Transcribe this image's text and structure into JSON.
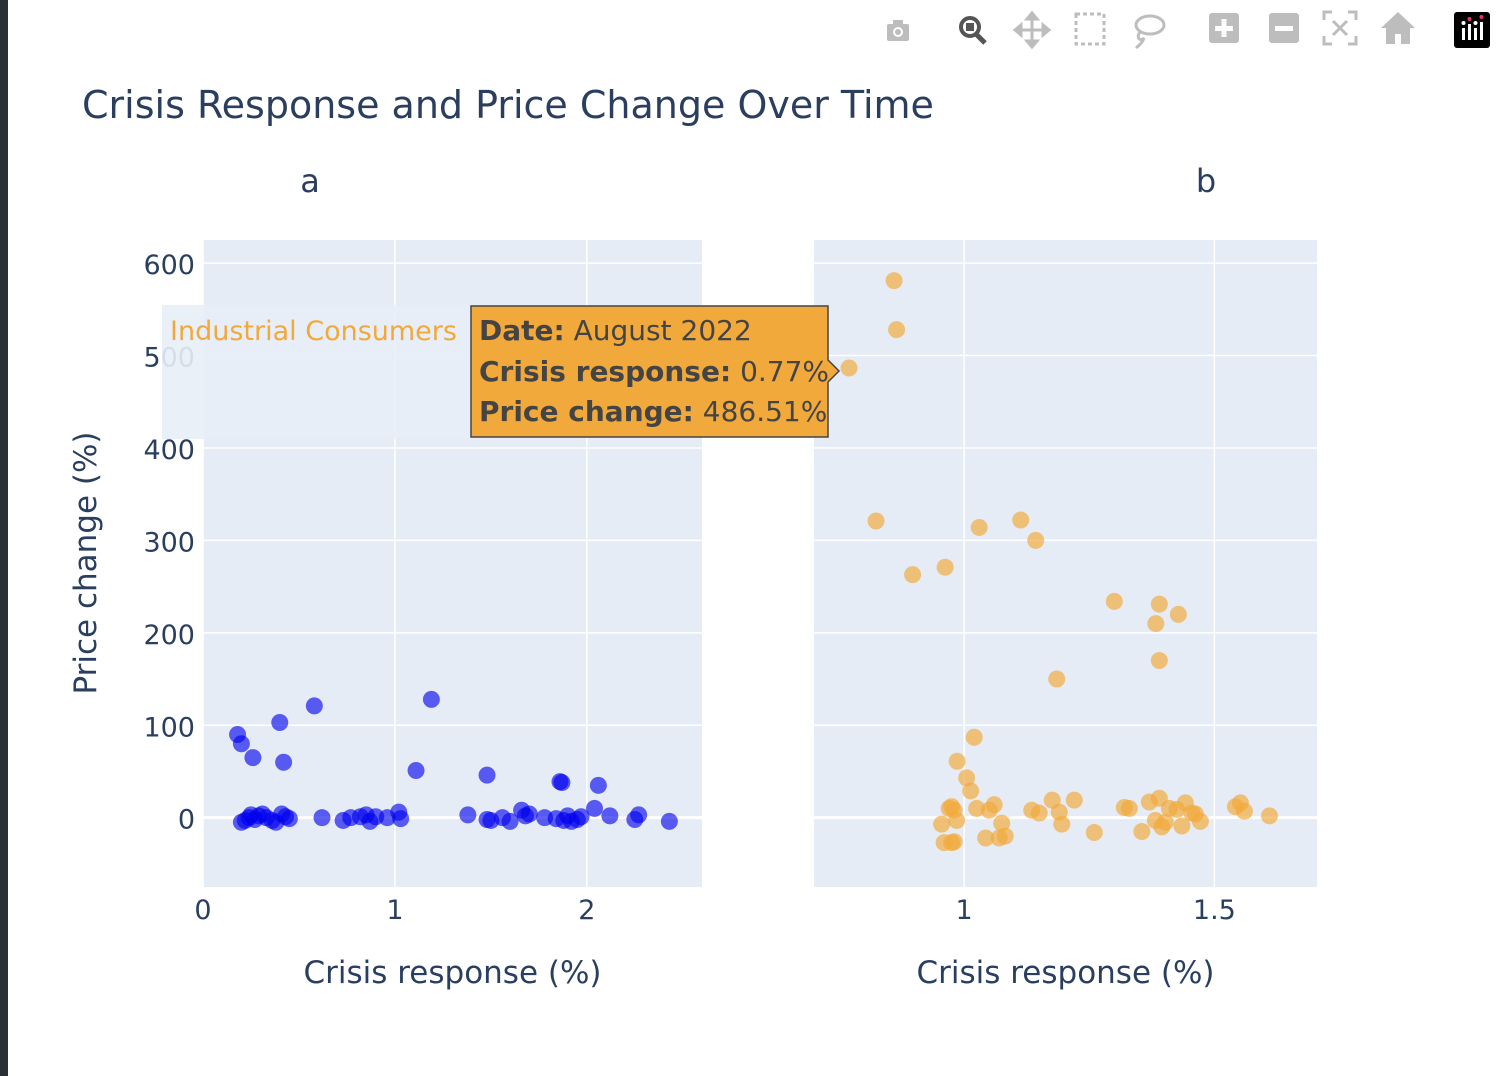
{
  "title": "Crisis Response and Price Change Over Time",
  "modebar": {
    "buttons": [
      {
        "name": "camera-icon",
        "icon": "camera"
      },
      {
        "name": "zoom-icon",
        "icon": "zoom"
      },
      {
        "name": "pan-icon",
        "icon": "pan"
      },
      {
        "name": "box-select-icon",
        "icon": "box-select"
      },
      {
        "name": "lasso-select-icon",
        "icon": "lasso"
      },
      {
        "name": "zoom-in-icon",
        "icon": "plus-square"
      },
      {
        "name": "zoom-out-icon",
        "icon": "minus-square"
      },
      {
        "name": "autoscale-icon",
        "icon": "autoscale"
      },
      {
        "name": "reset-axes-icon",
        "icon": "home"
      },
      {
        "name": "plotly-logo-icon",
        "icon": "plotly-logo"
      }
    ]
  },
  "tooltip": {
    "series_label": "Industrial Consumers",
    "date_key": "Date:",
    "date_value": " August 2022",
    "cr_key": "Crisis response:",
    "cr_value": " 0.77%",
    "pc_key": "Price change:",
    "pc_value": " 486.51%",
    "bg_color": "#f2a93b"
  },
  "chart_data": [
    {
      "type": "scatter",
      "subplot_title": "a",
      "xlabel": "Crisis response (%)",
      "ylabel": "Price change (%)",
      "xlim": [
        0,
        2.6
      ],
      "ylim": [
        -75,
        625
      ],
      "xticks": [
        0,
        1,
        2
      ],
      "xtick_labels": [
        "0",
        "1",
        "2"
      ],
      "yticks": [
        0,
        100,
        200,
        300,
        400,
        500,
        600
      ],
      "ytick_labels": [
        "0",
        "100",
        "200",
        "300",
        "400",
        "500",
        "600"
      ],
      "grid": true,
      "color": "#0000ee",
      "series": [
        {
          "points": [
            [
              0.18,
              90
            ],
            [
              0.2,
              80
            ],
            [
              0.26,
              65
            ],
            [
              0.4,
              103
            ],
            [
              0.42,
              60
            ],
            [
              0.58,
              121
            ],
            [
              1.19,
              128
            ],
            [
              1.11,
              51
            ],
            [
              1.48,
              46
            ],
            [
              1.86,
              39
            ],
            [
              1.87,
              38
            ],
            [
              2.06,
              35
            ],
            [
              0.2,
              -5
            ],
            [
              0.22,
              -3
            ],
            [
              0.24,
              0
            ],
            [
              0.25,
              3
            ],
            [
              0.27,
              -2
            ],
            [
              0.29,
              2
            ],
            [
              0.31,
              4
            ],
            [
              0.33,
              0
            ],
            [
              0.36,
              -3
            ],
            [
              0.38,
              -5
            ],
            [
              0.41,
              4
            ],
            [
              0.43,
              1
            ],
            [
              0.45,
              -1
            ],
            [
              0.62,
              0
            ],
            [
              0.73,
              -3
            ],
            [
              0.77,
              0
            ],
            [
              0.82,
              1
            ],
            [
              0.85,
              3
            ],
            [
              0.87,
              -4
            ],
            [
              0.9,
              1
            ],
            [
              0.96,
              0
            ],
            [
              1.02,
              6
            ],
            [
              1.03,
              -1
            ],
            [
              1.38,
              3
            ],
            [
              1.48,
              -2
            ],
            [
              1.5,
              -3
            ],
            [
              1.56,
              0
            ],
            [
              1.6,
              -4
            ],
            [
              1.66,
              8
            ],
            [
              1.68,
              2
            ],
            [
              1.7,
              4
            ],
            [
              1.78,
              0
            ],
            [
              1.84,
              -1
            ],
            [
              1.88,
              -3
            ],
            [
              1.9,
              2
            ],
            [
              1.92,
              -4
            ],
            [
              1.95,
              -2
            ],
            [
              1.97,
              1
            ],
            [
              2.04,
              10
            ],
            [
              2.12,
              2
            ],
            [
              2.25,
              -2
            ],
            [
              2.27,
              3
            ],
            [
              2.43,
              -4
            ]
          ]
        }
      ]
    },
    {
      "type": "scatter",
      "subplot_title": "b",
      "xlabel": "Crisis response (%)",
      "xlim": [
        0.7,
        1.705
      ],
      "ylim": [
        -75,
        625
      ],
      "xticks": [
        1,
        1.5
      ],
      "xtick_labels": [
        "1",
        "1.5"
      ],
      "yticks": [
        0,
        100,
        200,
        300,
        400,
        500,
        600
      ],
      "grid": true,
      "color": "#f2a93b",
      "series": [
        {
          "name": "Industrial Consumers",
          "points": [
            [
              0.86,
              581
            ],
            [
              0.865,
              528
            ],
            [
              0.77,
              486.51
            ],
            [
              0.824,
              321
            ],
            [
              0.897,
              263
            ],
            [
              0.962,
              271
            ],
            [
              1.03,
              314
            ],
            [
              1.113,
              322
            ],
            [
              1.143,
              300
            ],
            [
              1.3,
              234
            ],
            [
              1.39,
              231
            ],
            [
              1.428,
              220
            ],
            [
              1.383,
              210
            ],
            [
              1.39,
              170
            ],
            [
              1.185,
              150
            ],
            [
              1.02,
              87
            ],
            [
              0.986,
              61
            ],
            [
              1.005,
              43
            ],
            [
              1.013,
              29
            ],
            [
              0.955,
              -7
            ],
            [
              0.97,
              10
            ],
            [
              0.975,
              12
            ],
            [
              0.98,
              8
            ],
            [
              0.985,
              -3
            ],
            [
              0.96,
              -27
            ],
            [
              0.975,
              -27
            ],
            [
              0.98,
              -26
            ],
            [
              1.025,
              10
            ],
            [
              1.043,
              -22
            ],
            [
              1.05,
              8
            ],
            [
              1.06,
              14
            ],
            [
              1.07,
              -22
            ],
            [
              1.075,
              -6
            ],
            [
              1.082,
              -20
            ],
            [
              1.135,
              8
            ],
            [
              1.15,
              5
            ],
            [
              1.176,
              19
            ],
            [
              1.19,
              6
            ],
            [
              1.195,
              -7
            ],
            [
              1.22,
              19
            ],
            [
              1.26,
              -16
            ],
            [
              1.32,
              11
            ],
            [
              1.33,
              10
            ],
            [
              1.355,
              -15
            ],
            [
              1.37,
              17
            ],
            [
              1.382,
              -3
            ],
            [
              1.39,
              21
            ],
            [
              1.395,
              -10
            ],
            [
              1.402,
              -5
            ],
            [
              1.41,
              10
            ],
            [
              1.425,
              9
            ],
            [
              1.435,
              -9
            ],
            [
              1.442,
              16
            ],
            [
              1.455,
              5
            ],
            [
              1.462,
              4
            ],
            [
              1.472,
              -4
            ],
            [
              1.542,
              12
            ],
            [
              1.552,
              16
            ],
            [
              1.56,
              7
            ],
            [
              1.61,
              2
            ]
          ]
        }
      ]
    }
  ]
}
